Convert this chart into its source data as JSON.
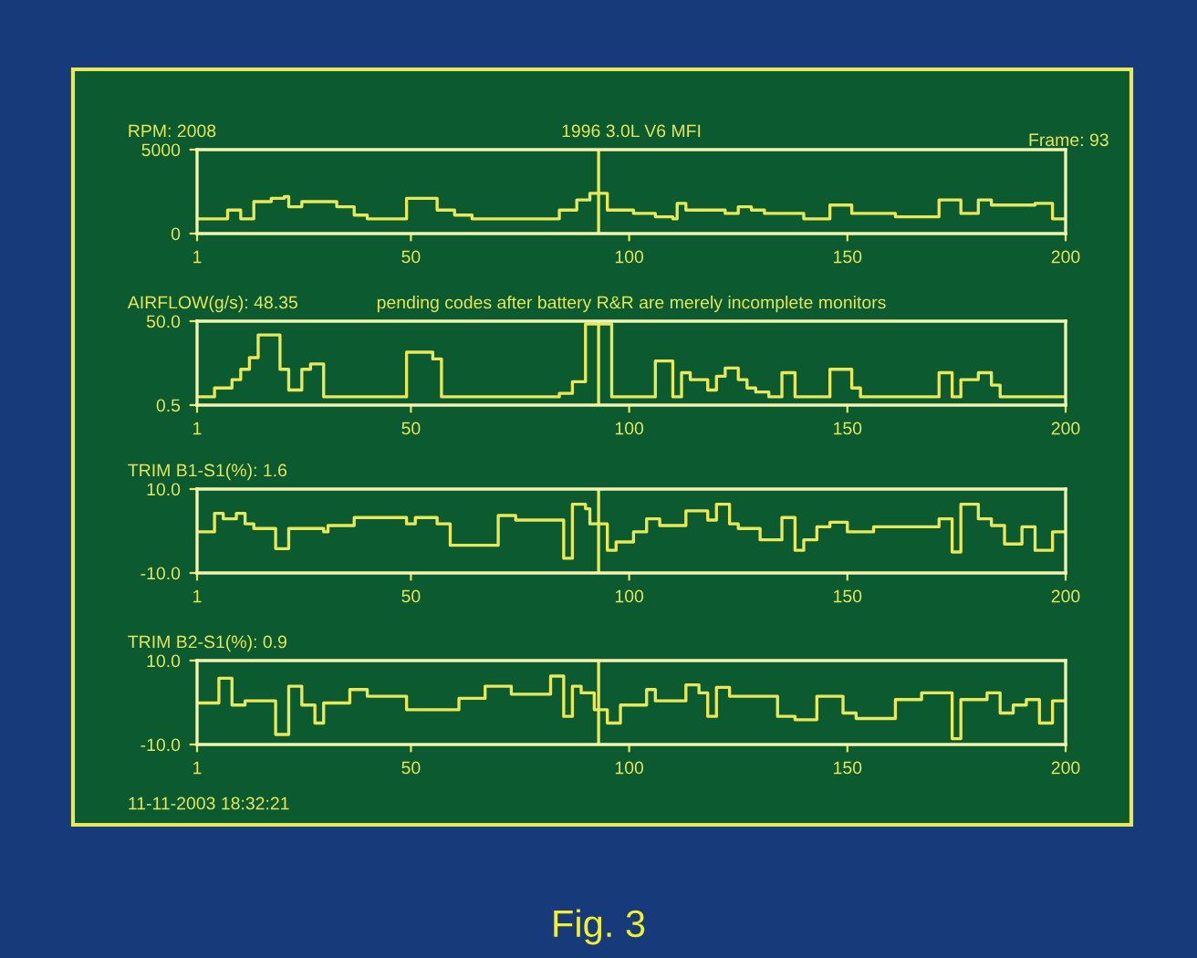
{
  "chart_data": [
    {
      "type": "step",
      "title": "RPM: 2008",
      "subtitle": "1996 3.0L V6 MFI",
      "annotations": [
        "Frame: 93"
      ],
      "series": [
        {
          "color": "#e8e85a",
          "x": [
            1,
            8,
            11,
            14,
            18,
            21,
            22,
            25,
            30,
            33,
            37,
            40,
            49,
            56,
            60,
            64,
            84,
            88,
            91,
            95,
            101,
            106,
            110,
            111,
            113,
            122,
            125,
            128,
            131,
            140,
            146,
            151,
            161,
            171,
            176,
            180,
            183,
            193,
            197,
            200
          ],
          "values": [
            880,
            1400,
            880,
            1900,
            2100,
            2200,
            1600,
            1900,
            1900,
            1600,
            1100,
            880,
            2100,
            1400,
            1100,
            880,
            1400,
            2000,
            2400,
            1400,
            1200,
            1000,
            880,
            1800,
            1400,
            1200,
            1600,
            1400,
            1200,
            880,
            1700,
            1200,
            1000,
            2000,
            1200,
            2000,
            1700,
            1800,
            880,
            880
          ]
        }
      ],
      "xlim": [
        1,
        200
      ],
      "xticks": [
        1,
        50,
        100,
        150,
        200
      ],
      "ylim": [
        0,
        5000
      ],
      "yticks": [
        0,
        5000
      ],
      "ref_lines": [
        {
          "axis": "x",
          "value": 93,
          "color": "#e8e85a"
        }
      ],
      "grid": false,
      "legend": false
    },
    {
      "type": "step",
      "title": "AIRFLOW(g/s): 48.35",
      "subtitle": "pending codes after battery R&R are merely incomplete monitors",
      "series": [
        {
          "color": "#e8e85a",
          "x": [
            1,
            5,
            9,
            11,
            13,
            15,
            20,
            22,
            25,
            27,
            30,
            49,
            55,
            57,
            64,
            84,
            87,
            90,
            91,
            96,
            106,
            110,
            112,
            114,
            118,
            120,
            122,
            125,
            127,
            129,
            132,
            135,
            138,
            146,
            151,
            153,
            171,
            174,
            176,
            180,
            183,
            185,
            200
          ],
          "values": [
            5.4,
            10.6,
            15.5,
            21.6,
            28.5,
            41.9,
            21.6,
            9.4,
            21.6,
            24.8,
            5.4,
            31.7,
            27.7,
            5.4,
            5.4,
            7.4,
            14.3,
            48.35,
            48.35,
            5.4,
            26.5,
            5.4,
            19.6,
            15.5,
            9.4,
            17.5,
            22.4,
            15.5,
            10.6,
            8.2,
            5.4,
            19.6,
            5.4,
            21.6,
            10.6,
            5.4,
            19.6,
            5.4,
            15.5,
            19.6,
            12.3,
            5.4,
            5.4
          ]
        }
      ],
      "xlim": [
        1,
        200
      ],
      "xticks": [
        1,
        50,
        100,
        150,
        200
      ],
      "ylim": [
        0.5,
        50
      ],
      "yticks": [
        {
          "value": 0.5,
          "label": "0.5"
        },
        {
          "value": 50,
          "label": "50.0"
        }
      ],
      "ref_lines": [
        {
          "axis": "x",
          "value": 93,
          "color": "#e8e85a"
        }
      ],
      "grid": false,
      "legend": false
    },
    {
      "type": "step",
      "title": "TRIM B1-S1(%): 1.6",
      "series": [
        {
          "color": "#e8e85a",
          "x": [
            1,
            5,
            7,
            10,
            12,
            14,
            19,
            22,
            30,
            31,
            37,
            49,
            51,
            56,
            59,
            70,
            74,
            85,
            87,
            90,
            91,
            95,
            97,
            101,
            104,
            107,
            113,
            118,
            120,
            123,
            125,
            130,
            135,
            138,
            140,
            143,
            146,
            150,
            156,
            171,
            174,
            176,
            180,
            183,
            186,
            190,
            193,
            197,
            200
          ],
          "values": [
            -0.2,
            4.2,
            2.9,
            4.2,
            1.7,
            0.6,
            -4.2,
            0.6,
            -0.2,
            1.3,
            3.2,
            1.7,
            3.2,
            1.7,
            -3.4,
            3.7,
            2.6,
            -6.5,
            6.4,
            5.3,
            1.7,
            -4.6,
            -2.6,
            -0.2,
            2.9,
            1.3,
            4.8,
            2.6,
            6.4,
            1.7,
            0.6,
            -2.1,
            3.2,
            -4.6,
            -2.1,
            1.0,
            2.1,
            -0.2,
            1.0,
            2.9,
            -5.0,
            6.4,
            2.9,
            1.3,
            -3.1,
            1.0,
            -4.6,
            -0.2,
            -0.2
          ]
        }
      ],
      "xlim": [
        1,
        200
      ],
      "xticks": [
        1,
        50,
        100,
        150,
        200
      ],
      "ylim": [
        -10,
        10
      ],
      "yticks": [
        {
          "value": -10,
          "label": "-10.0"
        },
        {
          "value": 10,
          "label": "10.0"
        }
      ],
      "ref_lines": [
        {
          "axis": "x",
          "value": 93,
          "color": "#e8e85a"
        }
      ],
      "grid": false,
      "legend": false
    },
    {
      "type": "step",
      "title": "TRIM B2-S1(%): 0.9",
      "annotations": [
        "11-11-2003 18:32:21",
        "Fig. 3"
      ],
      "series": [
        {
          "color": "#e8e85a",
          "x": [
            1,
            6,
            9,
            12,
            19,
            22,
            25,
            28,
            30,
            36,
            40,
            49,
            61,
            67,
            73,
            82,
            85,
            87,
            89,
            92,
            95,
            98,
            104,
            106,
            113,
            116,
            118,
            120,
            123,
            134,
            138,
            143,
            149,
            152,
            161,
            167,
            174,
            176,
            182,
            185,
            188,
            191,
            194,
            197,
            200
          ],
          "values": [
            -0.1,
            5.8,
            -0.6,
            0.4,
            -7.6,
            3.9,
            -0.6,
            -4.9,
            -0.1,
            3.1,
            1.5,
            -1.7,
            1.0,
            3.9,
            2.0,
            6.3,
            -3.3,
            3.9,
            2.3,
            -1.7,
            -4.9,
            -0.6,
            3.1,
            0.4,
            4.2,
            2.3,
            -3.3,
            3.6,
            1.5,
            -3.3,
            -4.1,
            1.5,
            -2.5,
            -3.8,
            0.7,
            2.3,
            -8.6,
            0.7,
            2.3,
            -2.5,
            -0.6,
            0.7,
            -4.9,
            0.4,
            0.4
          ]
        }
      ],
      "xlim": [
        1,
        200
      ],
      "xticks": [
        1,
        50,
        100,
        150,
        200
      ],
      "ylim": [
        -10,
        10
      ],
      "yticks": [
        {
          "value": -10,
          "label": "-10.0"
        },
        {
          "value": 10,
          "label": "10.0"
        }
      ],
      "ref_lines": [
        {
          "axis": "x",
          "value": 93,
          "color": "#e8e85a"
        }
      ],
      "grid": false,
      "legend": false
    }
  ]
}
